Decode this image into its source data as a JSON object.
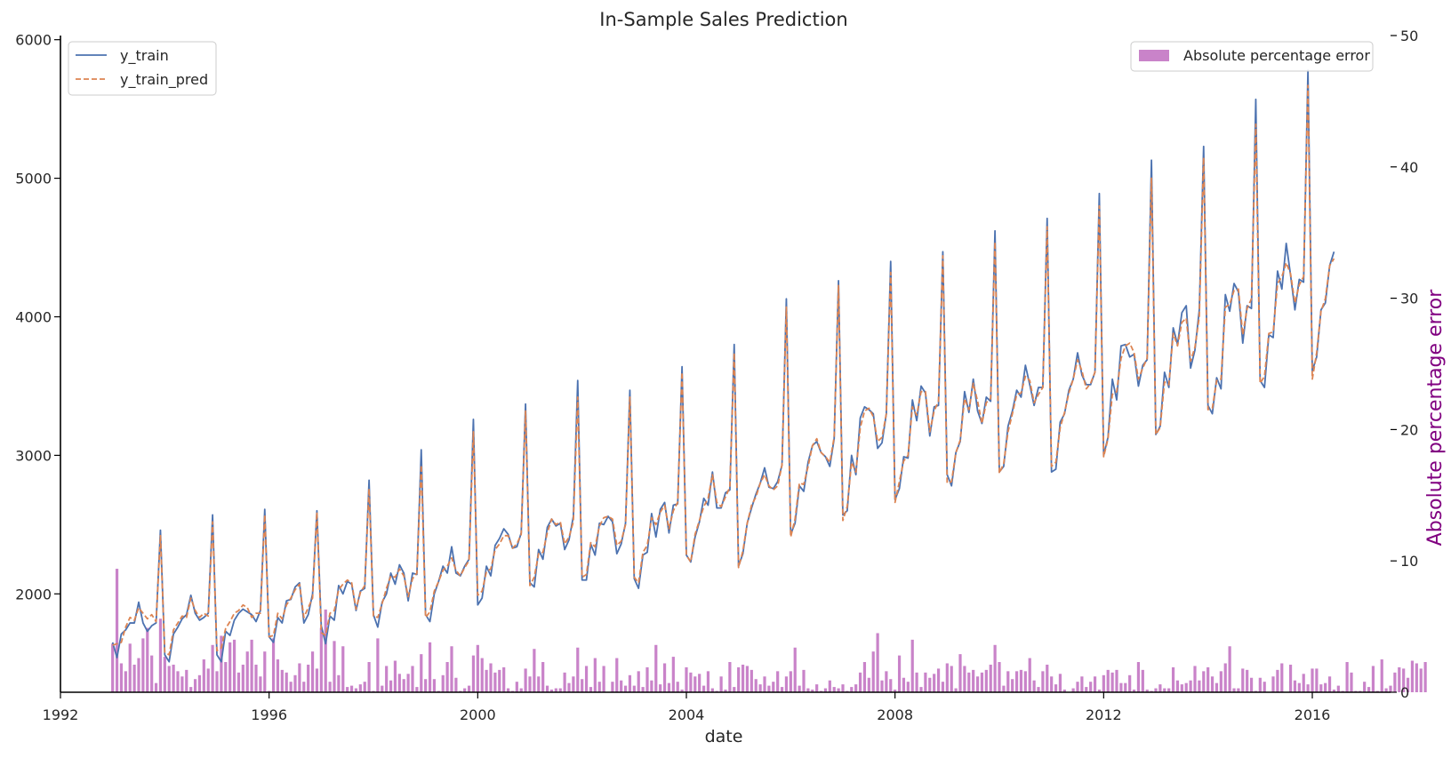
{
  "chart_data": {
    "type": "line",
    "title": "In-Sample Sales Prediction",
    "xlabel": "date",
    "ylabel": "",
    "y2label": "Absolute percentage error",
    "x_start": "1993-01",
    "x_step": "monthly",
    "x_ticks": [
      1992,
      1996,
      2000,
      2004,
      2008,
      2012,
      2016
    ],
    "xlim": [
      1992,
      2017.5
    ],
    "y_ticks": [
      2000,
      3000,
      4000,
      5000,
      6000
    ],
    "ylim": [
      1290,
      6030
    ],
    "y2_ticks": [
      0,
      10,
      20,
      30,
      40,
      50
    ],
    "y2lim": [
      0,
      50
    ],
    "grid": false,
    "legend_left_position": "upper-left",
    "legend_right_position": "upper-right",
    "colors": {
      "y_train": "#4c72b0",
      "y_train_pred": "#dd8452",
      "ape": "#c983c9",
      "y2label": "#800080"
    },
    "legend_left": [
      "y_train",
      "y_train_pred"
    ],
    "legend_right": [
      "Absolute percentage error"
    ],
    "series": [
      {
        "name": "y_train",
        "style": "solid",
        "values": [
          1650,
          1540,
          1710,
          1740,
          1790,
          1790,
          1940,
          1790,
          1730,
          1770,
          1790,
          2460,
          1560,
          1510,
          1710,
          1760,
          1820,
          1850,
          1990,
          1860,
          1810,
          1830,
          1860,
          2570,
          1560,
          1510,
          1730,
          1700,
          1810,
          1860,
          1890,
          1870,
          1850,
          1800,
          1880,
          2610,
          1690,
          1650,
          1830,
          1790,
          1950,
          1960,
          2050,
          2080,
          1790,
          1850,
          2000,
          2600,
          1770,
          1640,
          1840,
          1810,
          2060,
          2000,
          2090,
          2070,
          1880,
          2020,
          2040,
          2820,
          1850,
          1760,
          1940,
          2000,
          2150,
          2070,
          2210,
          2150,
          1950,
          2150,
          2140,
          3040,
          1850,
          1800,
          2000,
          2090,
          2200,
          2150,
          2340,
          2150,
          2130,
          2200,
          2250,
          3260,
          1920,
          1970,
          2200,
          2130,
          2350,
          2400,
          2470,
          2430,
          2330,
          2340,
          2440,
          3370,
          2080,
          2050,
          2320,
          2250,
          2480,
          2540,
          2490,
          2510,
          2320,
          2390,
          2560,
          3540,
          2100,
          2100,
          2360,
          2280,
          2510,
          2500,
          2560,
          2520,
          2290,
          2360,
          2510,
          3470,
          2110,
          2040,
          2280,
          2300,
          2580,
          2410,
          2610,
          2660,
          2440,
          2640,
          2650,
          3640,
          2280,
          2230,
          2410,
          2520,
          2690,
          2640,
          2880,
          2620,
          2620,
          2730,
          2750,
          3800,
          2200,
          2290,
          2510,
          2620,
          2720,
          2800,
          2910,
          2770,
          2760,
          2810,
          2930,
          4130,
          2430,
          2510,
          2780,
          2740,
          2950,
          3070,
          3100,
          3020,
          2990,
          2920,
          3120,
          4260,
          2570,
          2600,
          3000,
          2860,
          3270,
          3350,
          3330,
          3300,
          3050,
          3090,
          3300,
          4400,
          2680,
          2760,
          2990,
          2980,
          3400,
          3250,
          3500,
          3450,
          3140,
          3350,
          3360,
          4470,
          2860,
          2780,
          3020,
          3100,
          3460,
          3310,
          3550,
          3320,
          3230,
          3420,
          3390,
          4620,
          2880,
          2920,
          3210,
          3320,
          3470,
          3420,
          3650,
          3510,
          3360,
          3490,
          3490,
          4710,
          2880,
          2900,
          3240,
          3300,
          3470,
          3550,
          3740,
          3580,
          3510,
          3510,
          3600,
          4890,
          3000,
          3130,
          3550,
          3400,
          3790,
          3800,
          3710,
          3730,
          3500,
          3650,
          3690,
          5130,
          3150,
          3210,
          3600,
          3490,
          3920,
          3800,
          4030,
          4080,
          3630,
          3760,
          4050,
          5230,
          3360,
          3300,
          3560,
          3480,
          4160,
          4040,
          4240,
          4180,
          3810,
          4080,
          4060,
          5570,
          3540,
          3490,
          3870,
          3850,
          4330,
          4200,
          4530,
          4300,
          4050,
          4270,
          4250,
          5780,
          3610,
          3710,
          4050,
          4100,
          4370,
          4470
        ]
      },
      {
        "name": "y_train_pred",
        "style": "dashed",
        "values": [
          1630,
          1640,
          1650,
          1760,
          1830,
          1810,
          1900,
          1860,
          1820,
          1850,
          1800,
          2420,
          1580,
          1560,
          1740,
          1790,
          1840,
          1830,
          1970,
          1880,
          1830,
          1860,
          1840,
          2520,
          1590,
          1610,
          1750,
          1800,
          1860,
          1880,
          1920,
          1900,
          1830,
          1860,
          1860,
          2570,
          1690,
          1700,
          1860,
          1820,
          1920,
          1970,
          2030,
          2070,
          1830,
          1900,
          1970,
          2590,
          1720,
          1700,
          1860,
          1880,
          2030,
          2070,
          2100,
          2080,
          1890,
          2010,
          2060,
          2760,
          1840,
          1830,
          1930,
          2040,
          2130,
          2120,
          2180,
          2130,
          1980,
          2110,
          2150,
          2930,
          1830,
          1870,
          2020,
          2090,
          2170,
          2200,
          2260,
          2170,
          2130,
          2190,
          2240,
          3170,
          1990,
          2020,
          2160,
          2180,
          2320,
          2360,
          2420,
          2420,
          2330,
          2360,
          2430,
          3320,
          2060,
          2120,
          2290,
          2300,
          2440,
          2540,
          2500,
          2520,
          2360,
          2410,
          2520,
          3420,
          2120,
          2140,
          2370,
          2340,
          2490,
          2550,
          2560,
          2540,
          2350,
          2380,
          2500,
          3420,
          2120,
          2080,
          2300,
          2350,
          2550,
          2500,
          2590,
          2640,
          2470,
          2600,
          2660,
          3600,
          2280,
          2230,
          2430,
          2530,
          2630,
          2690,
          2860,
          2660,
          2630,
          2700,
          2770,
          3740,
          2190,
          2310,
          2510,
          2640,
          2700,
          2800,
          2860,
          2780,
          2750,
          2780,
          2930,
          4070,
          2410,
          2540,
          2800,
          2790,
          2920,
          3070,
          3120,
          3020,
          2990,
          2950,
          3130,
          4230,
          2530,
          2630,
          2950,
          2880,
          3200,
          3320,
          3340,
          3280,
          3100,
          3130,
          3300,
          4320,
          2660,
          2810,
          2960,
          3000,
          3350,
          3290,
          3460,
          3460,
          3170,
          3320,
          3390,
          4440,
          2800,
          2810,
          3020,
          3110,
          3410,
          3330,
          3520,
          3390,
          3230,
          3380,
          3410,
          4540,
          2870,
          2940,
          3170,
          3300,
          3440,
          3450,
          3570,
          3540,
          3380,
          3440,
          3490,
          4650,
          2920,
          2950,
          3200,
          3310,
          3450,
          3550,
          3690,
          3610,
          3480,
          3520,
          3600,
          4800,
          2990,
          3120,
          3440,
          3460,
          3700,
          3790,
          3810,
          3740,
          3550,
          3630,
          3700,
          5000,
          3150,
          3200,
          3530,
          3510,
          3880,
          3790,
          3960,
          3990,
          3680,
          3780,
          4000,
          5150,
          3330,
          3340,
          3540,
          3550,
          4070,
          4090,
          4190,
          4200,
          3870,
          4060,
          4130,
          5390,
          3520,
          3570,
          3880,
          3890,
          4240,
          4290,
          4390,
          4310,
          4100,
          4230,
          4290,
          5670,
          3550,
          3740,
          4040,
          4130,
          4370,
          4420
        ]
      },
      {
        "name": "Absolute percentage error",
        "type": "bar",
        "axis": "right",
        "values": [
          3.7,
          9.4,
          2.2,
          1.6,
          3.7,
          2.1,
          2.6,
          4.1,
          4.9,
          2.8,
          0.7,
          5.6,
          2.7,
          2.0,
          2.1,
          1.6,
          1.2,
          1.7,
          0.4,
          1.0,
          1.3,
          2.5,
          1.8,
          3.6,
          1.6,
          4.3,
          2.3,
          3.8,
          4.0,
          1.5,
          2.1,
          3.1,
          4.0,
          2.1,
          1.2,
          3.1,
          0.1,
          4.1,
          2.5,
          1.7,
          1.5,
          0.8,
          1.3,
          2.2,
          0.8,
          2.1,
          3.1,
          1.8,
          4.9,
          6.3,
          0.8,
          3.9,
          1.3,
          3.5,
          0.4,
          0.5,
          0.3,
          0.6,
          0.8,
          2.3,
          0.1,
          4.1,
          0.5,
          2.0,
          0.9,
          2.4,
          1.4,
          1.0,
          1.4,
          2.0,
          0.4,
          2.9,
          1.0,
          3.8,
          1.0,
          0.1,
          1.3,
          2.3,
          3.5,
          1.1,
          0.1,
          0.3,
          0.5,
          2.8,
          3.6,
          2.6,
          1.7,
          2.2,
          1.5,
          1.7,
          1.9,
          0.3,
          0.1,
          0.8,
          0.3,
          1.8,
          1.2,
          3.3,
          1.2,
          2.3,
          0.5,
          0.2,
          0.3,
          0.3,
          1.5,
          0.7,
          1.2,
          3.4,
          1.0,
          2.0,
          0.4,
          2.6,
          0.8,
          2.0,
          0.0,
          0.8,
          2.6,
          0.9,
          0.5,
          1.3,
          0.5,
          1.6,
          0.4,
          1.9,
          0.9,
          3.6,
          0.6,
          2.2,
          0.7,
          2.7,
          0.8,
          0.2,
          1.9,
          1.5,
          1.2,
          1.4,
          0.5,
          1.6,
          0.3,
          0.1,
          1.2,
          0.2,
          2.3,
          0.4,
          1.9,
          2.1,
          2.0,
          1.7,
          1.0,
          0.6,
          1.2,
          0.5,
          0.8,
          1.6,
          0.4,
          1.2,
          1.6,
          3.4,
          0.5,
          1.7,
          0.3,
          0.2,
          0.6,
          0.1,
          0.3,
          0.9,
          0.4,
          0.3,
          0.6,
          0.1,
          0.4,
          0.6,
          1.5,
          2.3,
          1.1,
          3.1,
          4.5,
          0.9,
          1.6,
          1.0,
          0.2,
          2.8,
          1.1,
          0.8,
          4.0,
          1.5,
          0.4,
          1.5,
          1.1,
          1.4,
          1.8,
          0.8,
          2.2,
          2.0,
          0.3,
          2.9,
          2.0,
          1.5,
          1.7,
          1.2,
          1.5,
          1.7,
          2.1,
          3.6,
          2.3,
          0.5,
          1.6,
          1.0,
          1.6,
          1.7,
          1.6,
          2.6,
          0.9,
          0.4,
          1.6,
          2.1,
          1.2,
          0.6,
          1.4,
          0.2,
          0.0,
          0.3,
          0.8,
          1.2,
          0.4,
          0.8,
          1.2,
          0.2,
          1.3,
          1.7,
          1.5,
          1.7,
          0.7,
          0.7,
          1.3,
          0.2,
          2.3,
          1.7,
          0.2,
          0.1,
          0.3,
          0.6,
          0.3,
          0.3,
          1.9,
          0.9,
          0.6,
          0.7,
          0.9,
          2.0,
          0.9,
          1.6,
          1.9,
          1.2,
          0.7,
          1.6,
          2.2,
          3.5,
          0.3,
          0.3,
          1.8,
          1.7,
          1.1,
          0.1,
          1.1,
          0.8,
          0.0,
          1.2,
          1.7,
          2.2,
          0.0,
          2.1,
          0.9,
          0.7,
          1.4,
          0.6,
          1.8,
          1.8,
          0.6,
          0.7,
          1.2,
          0.2,
          0.5,
          0.1,
          2.3,
          1.5,
          0.1,
          0.1,
          0.8,
          0.4,
          2.0,
          0.1,
          2.5,
          0.3,
          0.5,
          1.5,
          1.9,
          1.8,
          1.1,
          2.4,
          2.2,
          1.8,
          2.3
        ]
      }
    ]
  }
}
